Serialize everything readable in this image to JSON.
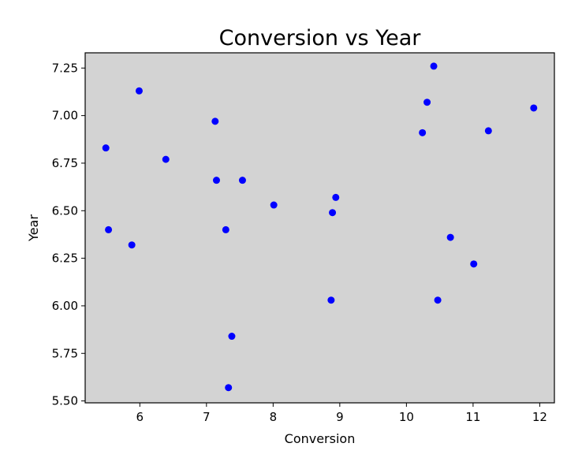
{
  "chart_data": {
    "type": "scatter",
    "title": "Conversion vs Year",
    "xlabel": "Conversion",
    "ylabel": "Year",
    "xlim": [
      5.18,
      12.22
    ],
    "ylim": [
      5.49,
      7.33
    ],
    "xticks": [
      6,
      7,
      8,
      9,
      10,
      11,
      12
    ],
    "xtick_labels": [
      "6",
      "7",
      "8",
      "9",
      "10",
      "11",
      "12"
    ],
    "yticks": [
      5.5,
      5.75,
      6.0,
      6.25,
      6.5,
      6.75,
      7.0,
      7.25
    ],
    "ytick_labels": [
      "5.50",
      "5.75",
      "6.00",
      "6.25",
      "6.50",
      "6.75",
      "7.00",
      "7.25"
    ],
    "grid": false,
    "legend": false,
    "colors": {
      "marker": "#0000ff",
      "plot_background": "#d3d3d3",
      "axes": "#000000"
    },
    "points": [
      {
        "x": 5.49,
        "y": 6.83
      },
      {
        "x": 5.53,
        "y": 6.4
      },
      {
        "x": 5.88,
        "y": 6.32
      },
      {
        "x": 5.99,
        "y": 7.13
      },
      {
        "x": 6.39,
        "y": 6.77
      },
      {
        "x": 7.13,
        "y": 6.97
      },
      {
        "x": 7.15,
        "y": 6.66
      },
      {
        "x": 7.29,
        "y": 6.4
      },
      {
        "x": 7.33,
        "y": 5.57
      },
      {
        "x": 7.38,
        "y": 5.84
      },
      {
        "x": 7.54,
        "y": 6.66
      },
      {
        "x": 8.01,
        "y": 6.53
      },
      {
        "x": 8.87,
        "y": 6.03
      },
      {
        "x": 8.89,
        "y": 6.49
      },
      {
        "x": 8.94,
        "y": 6.57
      },
      {
        "x": 10.24,
        "y": 6.91
      },
      {
        "x": 10.31,
        "y": 7.07
      },
      {
        "x": 10.41,
        "y": 7.26
      },
      {
        "x": 10.47,
        "y": 6.03
      },
      {
        "x": 10.66,
        "y": 6.36
      },
      {
        "x": 11.01,
        "y": 6.22
      },
      {
        "x": 11.23,
        "y": 6.92
      },
      {
        "x": 11.91,
        "y": 7.04
      }
    ]
  }
}
